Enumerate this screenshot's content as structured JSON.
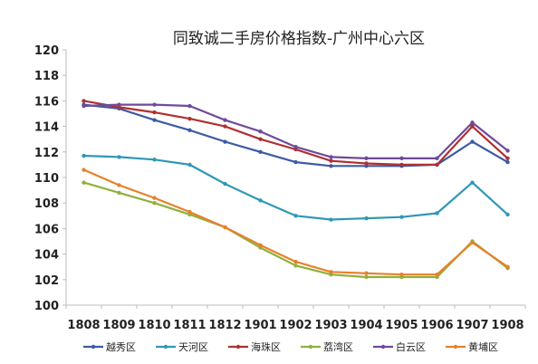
{
  "chart_data": {
    "type": "line",
    "title": "同致诚二手房价格指数-广州中心六区",
    "xlabel": "",
    "ylabel": "",
    "ylim": [
      100,
      120
    ],
    "yticks": [
      100,
      102,
      104,
      106,
      108,
      110,
      112,
      114,
      116,
      118,
      120
    ],
    "categories": [
      "1808",
      "1809",
      "1810",
      "1811",
      "1812",
      "1901",
      "1902",
      "1903",
      "1904",
      "1905",
      "1906",
      "1907",
      "1908"
    ],
    "grid": false,
    "legend_position": "bottom",
    "series": [
      {
        "name": "越秀区",
        "color": "#3b5ba5",
        "values": [
          115.7,
          115.4,
          114.5,
          113.7,
          112.8,
          112.0,
          111.2,
          110.9,
          110.9,
          110.9,
          111.0,
          112.8,
          111.2
        ]
      },
      {
        "name": "天河区",
        "color": "#2f98b5",
        "values": [
          111.7,
          111.6,
          111.4,
          111.0,
          109.5,
          108.2,
          107.0,
          106.7,
          106.8,
          106.9,
          107.2,
          109.6,
          107.1
        ]
      },
      {
        "name": "海珠区",
        "color": "#b03030",
        "values": [
          116.0,
          115.5,
          115.1,
          114.6,
          114.0,
          113.0,
          112.2,
          111.3,
          111.1,
          111.0,
          111.0,
          114.0,
          111.5
        ]
      },
      {
        "name": "荔湾区",
        "color": "#8fb03a",
        "values": [
          109.6,
          108.8,
          108.0,
          107.1,
          106.1,
          104.5,
          103.1,
          102.4,
          102.2,
          102.2,
          102.2,
          105.0,
          102.9
        ]
      },
      {
        "name": "白云区",
        "color": "#6f4a9a",
        "values": [
          115.6,
          115.7,
          115.7,
          115.6,
          114.5,
          113.6,
          112.4,
          111.6,
          111.5,
          111.5,
          111.5,
          114.3,
          112.1
        ]
      },
      {
        "name": "黄埔区",
        "color": "#e8802b",
        "values": [
          110.6,
          109.4,
          108.4,
          107.3,
          106.1,
          104.7,
          103.4,
          102.6,
          102.5,
          102.4,
          102.4,
          104.9,
          103.0
        ]
      }
    ]
  }
}
